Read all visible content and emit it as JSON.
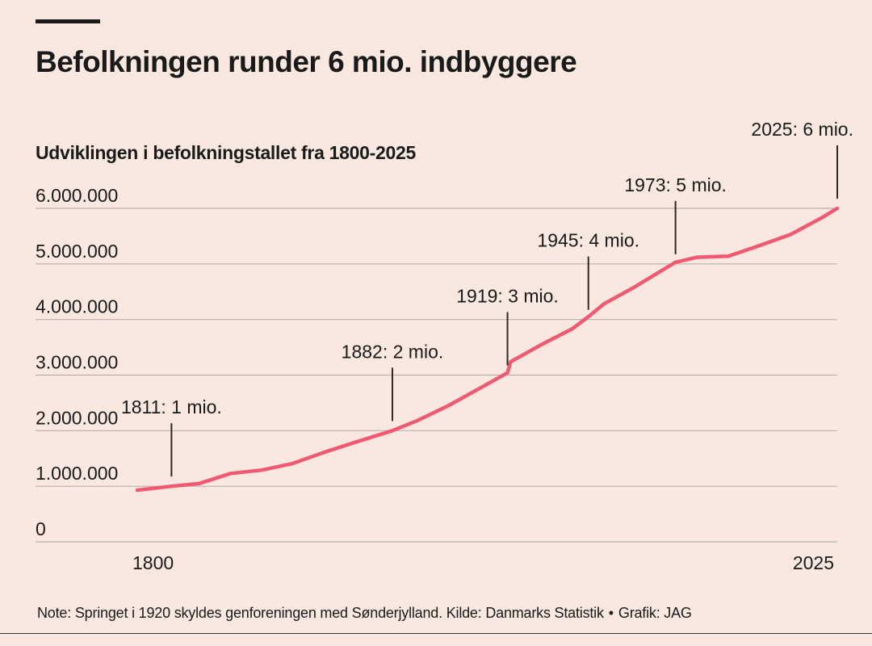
{
  "header": {
    "title": "Befolkningen runder 6 mio. indbyggere"
  },
  "footer": {
    "note": "Note: Springet i 1920 skyldes genforeningen med Sønderjylland. Kilde: Danmarks Statistik",
    "separator": "•",
    "credit": "Grafik: JAG"
  },
  "colors": {
    "background": "#f9e8e0",
    "line": "#ef5a72",
    "grid": "#b9b2ad",
    "text": "#1a1a1a"
  },
  "chart_data": {
    "type": "line",
    "title": "Udviklingen i befolkningstallet fra 1800-2025",
    "xlim": [
      1800,
      2025
    ],
    "ylim": [
      0,
      6000000
    ],
    "grid": true,
    "y_ticks": [
      {
        "value": 0,
        "label": "0"
      },
      {
        "value": 1000000,
        "label": "1.000.000"
      },
      {
        "value": 2000000,
        "label": "2.000.000"
      },
      {
        "value": 3000000,
        "label": "3.000.000"
      },
      {
        "value": 4000000,
        "label": "4.000.000"
      },
      {
        "value": 5000000,
        "label": "5.000.000"
      },
      {
        "value": 6000000,
        "label": "6.000.000"
      }
    ],
    "x_ticks": [
      {
        "value": 1800,
        "label": "1800"
      },
      {
        "value": 2025,
        "label": "2025"
      }
    ],
    "series": [
      {
        "x": [
          1800,
          1811,
          1820,
          1830,
          1840,
          1850,
          1860,
          1870,
          1882,
          1890,
          1900,
          1910,
          1919,
          1920,
          1930,
          1940,
          1945,
          1950,
          1960,
          1970,
          1973,
          1980,
          1990,
          2000,
          2010,
          2020,
          2025
        ],
        "y": [
          930000,
          1000000,
          1050000,
          1230000,
          1290000,
          1410000,
          1610000,
          1790000,
          2000000,
          2180000,
          2450000,
          2760000,
          3040000,
          3240000,
          3550000,
          3840000,
          4050000,
          4280000,
          4590000,
          4930000,
          5030000,
          5120000,
          5140000,
          5330000,
          5530000,
          5830000,
          6000000
        ]
      }
    ],
    "annotations": [
      {
        "year": 1811,
        "value": 1000000,
        "label": "1811: 1 mio."
      },
      {
        "year": 1882,
        "value": 2000000,
        "label": "1882: 2 mio."
      },
      {
        "year": 1919,
        "value": 3000000,
        "label": "1919: 3 mio."
      },
      {
        "year": 1945,
        "value": 4000000,
        "label": "1945: 4 mio."
      },
      {
        "year": 1973,
        "value": 5000000,
        "label": "1973: 5 mio."
      },
      {
        "year": 2025,
        "value": 6000000,
        "label": "2025: 6 mio."
      }
    ]
  }
}
